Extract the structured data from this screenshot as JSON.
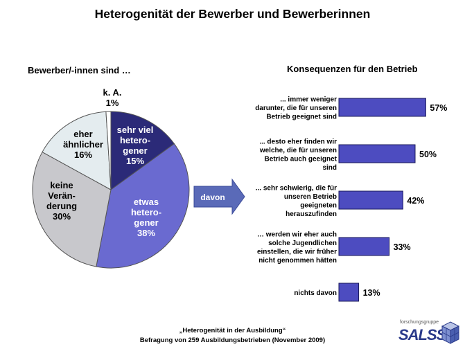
{
  "title": "Heterogenität der Bewerber und Bewerberinnen",
  "pie_heading": "Bewerber/-innen sind …",
  "bar_heading": "Konsequenzen für den Betrieb",
  "arrow_label": "davon",
  "footer": {
    "line1": "„Heterogenität in der Ausbildung“",
    "line2": "Befragung von 259 Ausbildungsbetrieben (November 2009)"
  },
  "logo": {
    "subtitle": "forschungsgruppe",
    "name": "SALSS"
  },
  "colors": {
    "sehr_viel": "#2b2a78",
    "etwas": "#6a6ad0",
    "keine": "#c8c8cc",
    "eher": "#e4ecef",
    "ka": "#ffffff",
    "bar": "#4d4cc0",
    "arrow": "#5a6ab8"
  },
  "chart_data": [
    {
      "type": "pie",
      "title": "Bewerber/-innen sind …",
      "slices": [
        {
          "label": [
            "sehr viel",
            "hetero-",
            "gener",
            "15%"
          ],
          "value": 15,
          "color_key": "sehr_viel",
          "text_color": "#ffffff"
        },
        {
          "label": [
            "etwas",
            "hetero-",
            "gener",
            "38%"
          ],
          "value": 38,
          "color_key": "etwas",
          "text_color": "#ffffff"
        },
        {
          "label": [
            "keine",
            "Verän-",
            "derung",
            "30%"
          ],
          "value": 30,
          "color_key": "keine",
          "text_color": "#000000"
        },
        {
          "label": [
            "eher",
            "ähnlicher",
            "16%"
          ],
          "value": 16,
          "color_key": "eher",
          "text_color": "#000000"
        },
        {
          "label": [
            "k. A.",
            "1%"
          ],
          "value": 1,
          "color_key": "ka",
          "text_color": "#000000"
        }
      ]
    },
    {
      "type": "bar",
      "orientation": "horizontal",
      "title": "Konsequenzen für den Betrieb",
      "categories": [
        [
          "... immer weniger",
          "darunter, die für unseren",
          "Betrieb geeignet sind"
        ],
        [
          "... desto eher finden wir",
          "welche, die für unseren",
          "Betrieb auch geeignet",
          "sind"
        ],
        [
          "... sehr schwierig, die für",
          "unseren Betrieb",
          "geeigneten",
          "herauszufinden"
        ],
        [
          "… werden wir eher auch",
          "solche Jugendlichen",
          "einstellen, die wir früher",
          "nicht genommen hätten"
        ],
        [
          "nichts davon"
        ]
      ],
      "values": [
        57,
        50,
        42,
        33,
        13
      ],
      "value_labels": [
        "57%",
        "50%",
        "42%",
        "33%",
        "13%"
      ]
    }
  ]
}
